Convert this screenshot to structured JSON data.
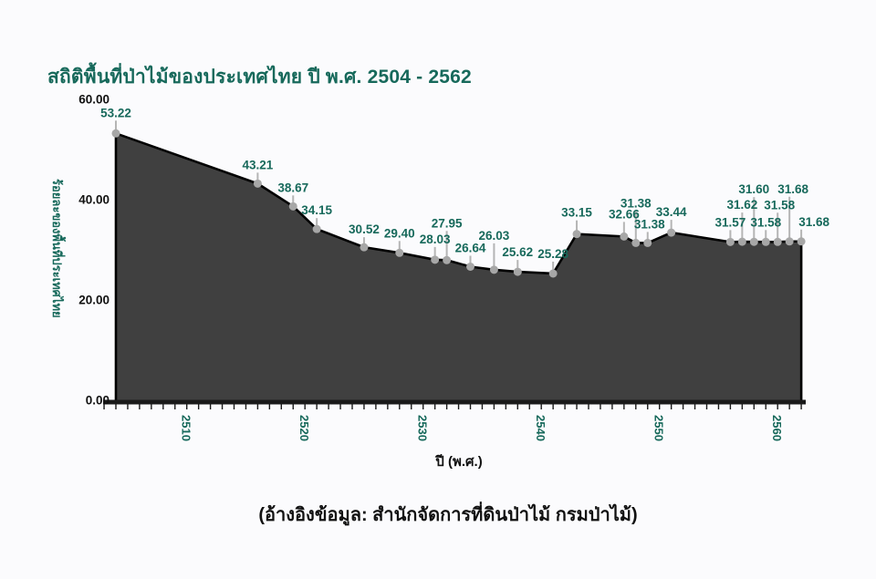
{
  "page": {
    "title": "สถิติพื้นที่ป่าไม้ของประเทศไทย ปี พ.ศ. 2504 - 2562",
    "source_note": "(อ้างอิงข้อมูล: สำนักจัดการที่ดินป่าไม้ กรมป่าไม้)",
    "background": "#fbfbfd"
  },
  "colors": {
    "accent_green": "#17695b",
    "area_fill": "#404040",
    "line": "#000000",
    "marker": "#a7a7a7",
    "stem": "#b5b5b5",
    "axis": "#1a1a1a",
    "text_dark": "#111111"
  },
  "chart_data": {
    "type": "area",
    "title": "สถิติพื้นที่ป่าไม้ของประเทศไทย ปี พ.ศ. 2504 - 2562",
    "xlabel": "ปี (พ.ศ.)",
    "ylabel": "ร้อยละของพื้นที่ประเทศไทย",
    "xlim": [
      2504,
      2562
    ],
    "ylim": [
      0,
      60
    ],
    "grid": false,
    "legend": null,
    "x_ticks": [
      "2510",
      "2520",
      "2530",
      "2540",
      "2550",
      "2560"
    ],
    "y_ticks": [
      "0.00",
      "20.00",
      "40.00",
      "60.00"
    ],
    "points": [
      {
        "year": 2504,
        "value": 53.22,
        "label": "53.22",
        "label_offset": 18,
        "label_dx": 0
      },
      {
        "year": 2516,
        "value": 43.21,
        "label": "43.21",
        "label_offset": 16,
        "label_dx": 0
      },
      {
        "year": 2519,
        "value": 38.67,
        "label": "38.67",
        "label_offset": 16,
        "label_dx": 0
      },
      {
        "year": 2521,
        "value": 34.15,
        "label": "34.15",
        "label_offset": 16,
        "label_dx": 0
      },
      {
        "year": 2525,
        "value": 30.52,
        "label": "30.52",
        "label_offset": 15,
        "label_dx": 0
      },
      {
        "year": 2528,
        "value": 29.4,
        "label": "29.40",
        "label_offset": 17,
        "label_dx": 0
      },
      {
        "year": 2531,
        "value": 28.03,
        "label": "28.03",
        "label_offset": 18,
        "label_dx": 0
      },
      {
        "year": 2532,
        "value": 27.95,
        "label": "27.95",
        "label_offset": 36,
        "label_dx": 0
      },
      {
        "year": 2534,
        "value": 26.64,
        "label": "26.64",
        "label_offset": 16,
        "label_dx": 0
      },
      {
        "year": 2536,
        "value": 26.03,
        "label": "26.03",
        "label_offset": 33,
        "label_dx": 0
      },
      {
        "year": 2538,
        "value": 25.62,
        "label": "25.62",
        "label_offset": 17,
        "label_dx": 0
      },
      {
        "year": 2541,
        "value": 25.28,
        "label": "25.28",
        "label_offset": 17,
        "label_dx": 0
      },
      {
        "year": 2543,
        "value": 33.15,
        "label": "33.15",
        "label_offset": 19,
        "label_dx": 0
      },
      {
        "year": 2547,
        "value": 32.66,
        "label": "32.66",
        "label_offset": 20,
        "label_dx": 0
      },
      {
        "year": 2548,
        "value": 31.38,
        "label": "31.38",
        "label_offset": 39,
        "label_dx": 0
      },
      {
        "year": 2549,
        "value": 31.38,
        "label": "31.38",
        "label_offset": 16,
        "label_dx": 2
      },
      {
        "year": 2551,
        "value": 33.44,
        "label": "33.44",
        "label_offset": 18,
        "label_dx": 0
      },
      {
        "year": 2556,
        "value": 31.57,
        "label": "31.57",
        "label_offset": 17,
        "label_dx": 0
      },
      {
        "year": 2557,
        "value": 31.62,
        "label": "31.62",
        "label_offset": 36,
        "label_dx": 0
      },
      {
        "year": 2558,
        "value": 31.6,
        "label": "31.60",
        "label_offset": 53,
        "label_dx": 0
      },
      {
        "year": 2559,
        "value": 31.58,
        "label": "31.58",
        "label_offset": 17,
        "label_dx": 0
      },
      {
        "year": 2560,
        "value": 31.58,
        "label": "31.58",
        "label_offset": 36,
        "label_dx": 2
      },
      {
        "year": 2561,
        "value": 31.68,
        "label": "31.68",
        "label_offset": 53,
        "label_dx": 4
      },
      {
        "year": 2562,
        "value": 31.68,
        "label": "31.68",
        "label_offset": 17,
        "label_dx": 14
      }
    ]
  }
}
